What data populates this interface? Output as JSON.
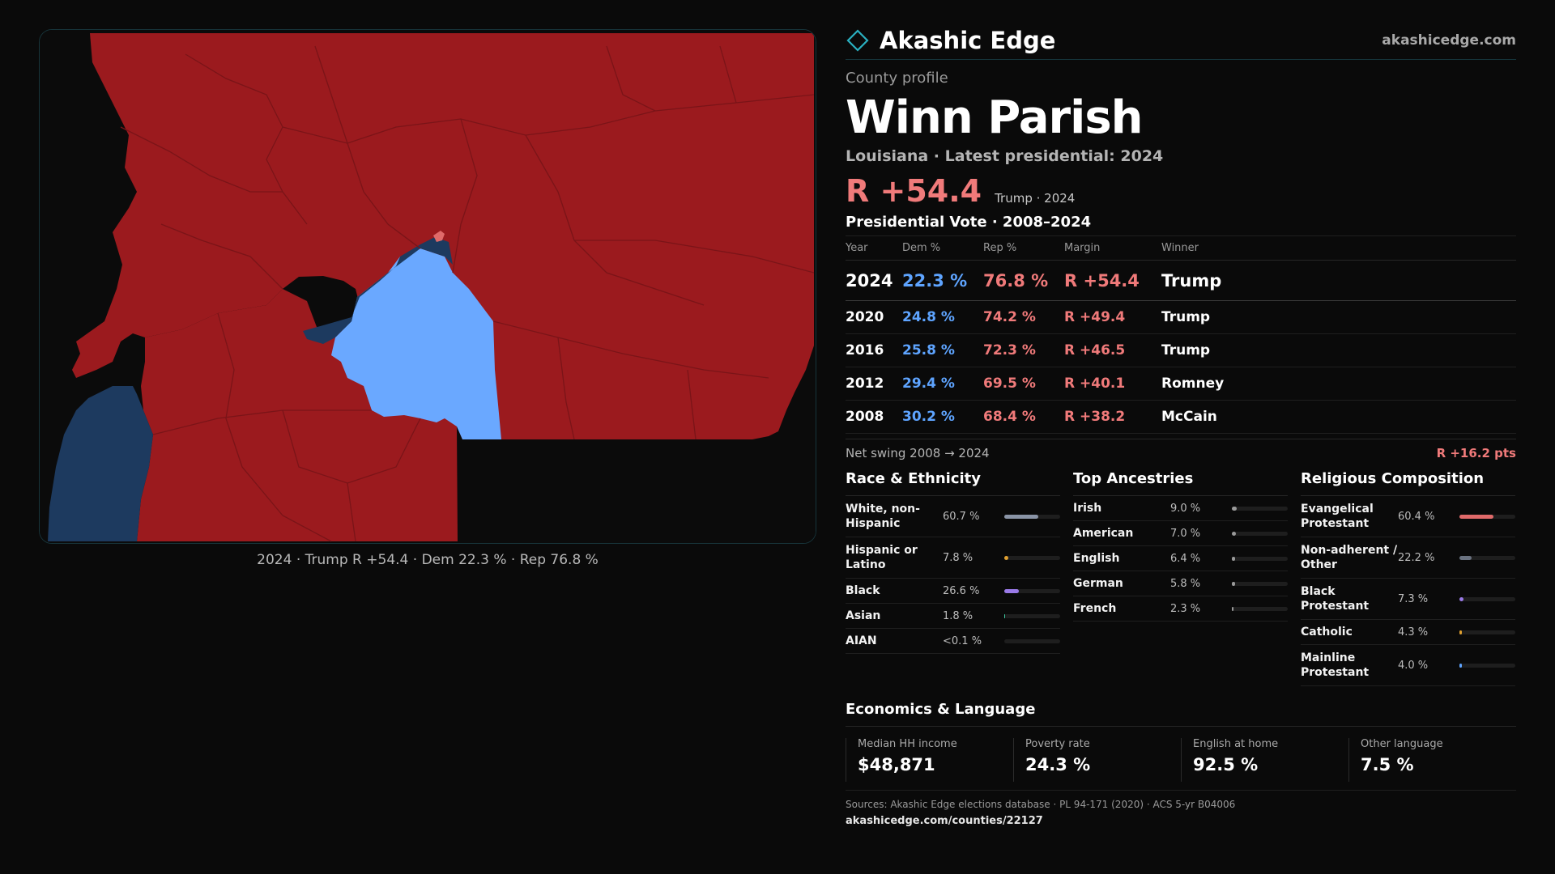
{
  "map": {
    "caption": "2024 · Trump R +54.4 · Dem 22.3 % · Rep 76.8 %",
    "colors": {
      "background": "#0b0b0b",
      "rep_strong": "#9b1a1e",
      "dem_light": "#6aa8ff",
      "dem_dark": "#1d3a5f",
      "border": "#17343a",
      "precinct_line": "#7a1418"
    }
  },
  "header": {
    "logo_icon": "diamond-outline-icon",
    "brand": "Akashic Edge",
    "site": "akashicedge.com"
  },
  "profile": {
    "eyebrow": "County profile",
    "name": "Winn Parish",
    "subline": "Louisiana · Latest presidential: 2024",
    "margin": "R +54.4",
    "margin_note": "Trump · 2024"
  },
  "votes": {
    "title": "Presidential Vote · 2008–2024",
    "columns": [
      "Year",
      "Dem %",
      "Rep %",
      "Margin",
      "Winner"
    ],
    "rows": [
      {
        "year": "2024",
        "dem": "22.3 %",
        "rep": "76.8 %",
        "margin": "R +54.4",
        "winner": "Trump"
      },
      {
        "year": "2020",
        "dem": "24.8 %",
        "rep": "74.2 %",
        "margin": "R +49.4",
        "winner": "Trump"
      },
      {
        "year": "2016",
        "dem": "25.8 %",
        "rep": "72.3 %",
        "margin": "R +46.5",
        "winner": "Trump"
      },
      {
        "year": "2012",
        "dem": "29.4 %",
        "rep": "69.5 %",
        "margin": "R +40.1",
        "winner": "Romney"
      },
      {
        "year": "2008",
        "dem": "30.2 %",
        "rep": "68.4 %",
        "margin": "R +38.2",
        "winner": "McCain"
      }
    ],
    "swing_label": "Net swing 2008 → 2024",
    "swing_value": "R +16.2 pts"
  },
  "race": {
    "title": "Race & Ethnicity",
    "rows": [
      {
        "label": "White, non-Hispanic",
        "value": "60.7 %",
        "share": 0.607,
        "color": "#8a94a6"
      },
      {
        "label": "Hispanic or Latino",
        "value": "7.8 %",
        "share": 0.078,
        "color": "#e0a030"
      },
      {
        "label": "Black",
        "value": "26.6 %",
        "share": 0.266,
        "color": "#9a7ae8"
      },
      {
        "label": "Asian",
        "value": "1.8 %",
        "share": 0.018,
        "color": "#3cc8a0"
      },
      {
        "label": "AIAN",
        "value": "<0.1 %",
        "share": 0.0,
        "color": "#8a94a6"
      }
    ]
  },
  "ancestry": {
    "title": "Top Ancestries",
    "rows": [
      {
        "label": "Irish",
        "value": "9.0 %",
        "share": 0.09,
        "color": "#9a9a9a"
      },
      {
        "label": "American",
        "value": "7.0 %",
        "share": 0.07,
        "color": "#9a9a9a"
      },
      {
        "label": "English",
        "value": "6.4 %",
        "share": 0.064,
        "color": "#9a9a9a"
      },
      {
        "label": "German",
        "value": "5.8 %",
        "share": 0.058,
        "color": "#9a9a9a"
      },
      {
        "label": "French",
        "value": "2.3 %",
        "share": 0.023,
        "color": "#9a9a9a"
      }
    ]
  },
  "religion": {
    "title": "Religious Composition",
    "rows": [
      {
        "label": "Evangelical Protestant",
        "value": "60.4 %",
        "share": 0.604,
        "color": "#e06a6a"
      },
      {
        "label": "Non-adherent / Other",
        "value": "22.2 %",
        "share": 0.222,
        "color": "#6a7280"
      },
      {
        "label": "Black Protestant",
        "value": "7.3 %",
        "share": 0.073,
        "color": "#9a7ae8"
      },
      {
        "label": "Catholic",
        "value": "4.3 %",
        "share": 0.043,
        "color": "#e0a030"
      },
      {
        "label": "Mainline Protestant",
        "value": "4.0 %",
        "share": 0.04,
        "color": "#5ea4ff"
      }
    ]
  },
  "economics": {
    "title": "Economics & Language",
    "metrics": [
      {
        "label": "Median HH income",
        "value": "$48,871"
      },
      {
        "label": "Poverty rate",
        "value": "24.3 %"
      },
      {
        "label": "English at home",
        "value": "92.5 %"
      },
      {
        "label": "Other language",
        "value": "7.5 %"
      }
    ]
  },
  "footer": {
    "sources": "Sources: Akashic Edge elections database · PL 94-171 (2020) · ACS 5-yr B04006",
    "permalink": "akashicedge.com/counties/22127"
  }
}
